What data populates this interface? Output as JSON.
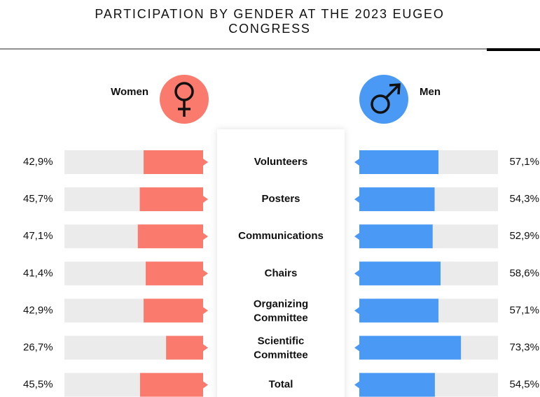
{
  "chart_data": {
    "type": "butterfly",
    "title": "PARTICIPATION BY GENDER AT THE 2023 EUGEO CONGRESS",
    "categories": [
      "Volunteers",
      "Posters",
      "Communications",
      "Chairs",
      "Organizing Committee",
      "Scientific Committee",
      "Total"
    ],
    "xlim": [
      0,
      100
    ],
    "series": [
      {
        "name": "Women",
        "color": "#fa7b6e",
        "values": [
          42.9,
          45.7,
          47.1,
          41.4,
          42.9,
          26.7,
          45.5
        ],
        "value_labels": [
          "42,9%",
          "45,7%",
          "47,1%",
          "41,4%",
          "42,9%",
          "26,7%",
          "45,5%"
        ]
      },
      {
        "name": "Men",
        "color": "#4a9af5",
        "values": [
          57.1,
          54.3,
          52.9,
          58.6,
          57.1,
          73.3,
          54.5
        ],
        "value_labels": [
          "57,1%",
          "54,3%",
          "52,9%",
          "58,6%",
          "57,1%",
          "73,3%",
          "54,5%"
        ]
      }
    ]
  }
}
